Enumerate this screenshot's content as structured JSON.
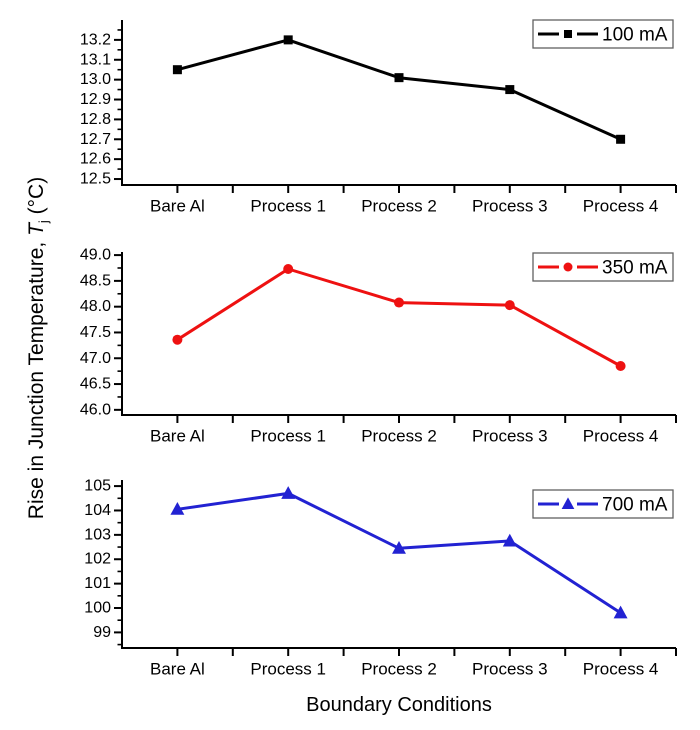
{
  "figure": {
    "background": "#ffffff",
    "x_axis_title": "Boundary Conditions",
    "y_axis_title": {
      "prefix": "Rise in Junction Temperature, ",
      "symbol": "T",
      "subscript": "j",
      "suffix": " (°C)"
    }
  },
  "chart_data": [
    {
      "type": "line",
      "panel": "top",
      "legend_label": "100 mA",
      "legend_position": "top-right",
      "color": "#000000",
      "marker": "square",
      "categories": [
        "Bare Al",
        "Process 1",
        "Process 2",
        "Process 3",
        "Process 4"
      ],
      "values": [
        13.05,
        13.2,
        13.01,
        12.95,
        12.7
      ],
      "ylim": [
        12.47,
        13.3
      ],
      "yticks": [
        12.5,
        12.6,
        12.7,
        12.8,
        12.9,
        13.0,
        13.1,
        13.2
      ],
      "ytick_labels": [
        "12.5",
        "12.6",
        "12.7",
        "12.8",
        "12.9",
        "13.0",
        "13.1",
        "13.2"
      ],
      "yminor": [
        12.55,
        12.65,
        12.75,
        12.85,
        12.95,
        13.05,
        13.15,
        13.25
      ],
      "grid": false
    },
    {
      "type": "line",
      "panel": "middle",
      "legend_label": "350 mA",
      "legend_position": "top-right",
      "color": "#ee1111",
      "marker": "circle",
      "categories": [
        "Bare Al",
        "Process 1",
        "Process 2",
        "Process 3",
        "Process 4"
      ],
      "values": [
        47.36,
        48.73,
        48.08,
        48.03,
        46.85
      ],
      "ylim": [
        45.9,
        49.06
      ],
      "yticks": [
        46.0,
        46.5,
        47.0,
        47.5,
        48.0,
        48.5,
        49.0
      ],
      "ytick_labels": [
        "46.0",
        "46.5",
        "47.0",
        "47.5",
        "48.0",
        "48.5",
        "49.0"
      ],
      "yminor": [
        46.25,
        46.75,
        47.25,
        47.75,
        48.25,
        48.75
      ],
      "grid": false
    },
    {
      "type": "line",
      "panel": "bottom",
      "legend_label": "700 mA",
      "legend_position": "top-right",
      "color": "#2222d2",
      "marker": "triangle",
      "categories": [
        "Bare Al",
        "Process 1",
        "Process 2",
        "Process 3",
        "Process 4"
      ],
      "values": [
        104.05,
        104.7,
        102.45,
        102.75,
        99.8
      ],
      "ylim": [
        98.36,
        105.25
      ],
      "yticks": [
        99,
        100,
        101,
        102,
        103,
        104,
        105
      ],
      "ytick_labels": [
        "99",
        "100",
        "101",
        "102",
        "103",
        "104",
        "105"
      ],
      "yminor": [
        98.5,
        99.5,
        100.5,
        101.5,
        102.5,
        103.5,
        104.5
      ],
      "grid": false
    }
  ]
}
